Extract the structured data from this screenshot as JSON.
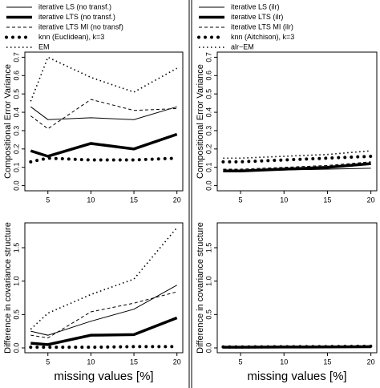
{
  "chart_data": [
    {
      "type": "line",
      "ylabel": "Compositional Error Variance",
      "legend": "top",
      "x": [
        3,
        5,
        10,
        15,
        20
      ],
      "xlim": [
        2.32,
        20.68
      ],
      "xticks": [
        5,
        10,
        15,
        20
      ],
      "ylim": [
        -0.028,
        0.728
      ],
      "yticks": [
        {
          "value": 0,
          "label": "0.0"
        },
        0.1,
        0.2,
        0.3,
        0.4,
        0.5,
        0.6,
        0.7
      ],
      "series": [
        {
          "name": "iterative LS (no transf.)",
          "color": "#000000",
          "linestyle": "solid",
          "values": [
            0.43,
            0.36,
            0.37,
            0.36,
            0.43
          ]
        },
        {
          "name": "iterative LTS (no transf.)",
          "color": "#000000",
          "linestyle": "thick",
          "values": [
            0.19,
            0.16,
            0.23,
            0.2,
            0.28
          ]
        },
        {
          "name": "iterative LTS MI (no transf)",
          "color": "#000000",
          "linestyle": "dashed",
          "values": [
            0.38,
            0.31,
            0.47,
            0.41,
            0.42
          ]
        },
        {
          "name": "knn (Euclidean), k=3",
          "color": "#000000",
          "linestyle": "dots",
          "values": [
            0.13,
            0.15,
            0.14,
            0.14,
            0.15
          ]
        },
        {
          "name": "EM",
          "color": "#000000",
          "linestyle": "dotted",
          "values": [
            0.46,
            0.7,
            0.59,
            0.51,
            0.64
          ]
        }
      ]
    },
    {
      "type": "line",
      "ylabel": "Compositional Error Variance",
      "legend": "top",
      "x": [
        3,
        5,
        10,
        15,
        20
      ],
      "xlim": [
        2.32,
        20.68
      ],
      "xticks": [
        5,
        10,
        15,
        20
      ],
      "ylim": [
        -0.028,
        0.728
      ],
      "yticks": [
        {
          "value": 0,
          "label": "0.0"
        },
        0.1,
        0.2,
        0.3,
        0.4,
        0.5,
        0.6,
        0.7
      ],
      "series": [
        {
          "name": "iterative LS (ilr)",
          "color": "#000000",
          "linestyle": "solid",
          "values": [
            0.08,
            0.08,
            0.085,
            0.09,
            0.095
          ]
        },
        {
          "name": "iterative LTS (ilr)",
          "color": "#000000",
          "linestyle": "thick",
          "values": [
            0.08,
            0.08,
            0.09,
            0.1,
            0.12
          ]
        },
        {
          "name": "iterative LTS MI (ilr)",
          "color": "#000000",
          "linestyle": "dashed",
          "values": [
            0.09,
            0.09,
            0.1,
            0.11,
            0.13
          ]
        },
        {
          "name": "knn (Aitchison), k=3",
          "color": "#000000",
          "linestyle": "dots",
          "values": [
            0.13,
            0.13,
            0.14,
            0.15,
            0.16
          ]
        },
        {
          "name": "alr−EM",
          "color": "#000000",
          "linestyle": "dotted",
          "values": [
            0.15,
            0.15,
            0.16,
            0.17,
            0.19
          ]
        }
      ]
    },
    {
      "type": "line",
      "ylabel": "Difference in covariance structure",
      "xlabel": "missing values [%]",
      "x": [
        3,
        5,
        10,
        15,
        20
      ],
      "xlim": [
        2.32,
        20.68
      ],
      "xticks": [
        5,
        10,
        15,
        20
      ],
      "ylim": [
        -0.072,
        1.872
      ],
      "yticks": [
        {
          "value": 0,
          "label": "0.0"
        },
        0.5,
        {
          "value": 1,
          "label": "1.0"
        },
        1.5
      ],
      "series": [
        {
          "color": "#000000",
          "linestyle": "solid",
          "values": [
            0.25,
            0.19,
            0.4,
            0.58,
            0.94
          ]
        },
        {
          "color": "#000000",
          "linestyle": "thick",
          "values": [
            0.07,
            0.05,
            0.19,
            0.2,
            0.45
          ]
        },
        {
          "color": "#000000",
          "linestyle": "dashed",
          "values": [
            0.19,
            0.15,
            0.54,
            0.67,
            0.84
          ]
        },
        {
          "color": "#000000",
          "linestyle": "dots",
          "values": [
            0.01,
            0.01,
            0.01,
            0.02,
            0.02
          ]
        },
        {
          "color": "#000000",
          "linestyle": "dotted",
          "values": [
            0.28,
            0.52,
            0.8,
            1.03,
            1.8
          ]
        }
      ]
    },
    {
      "type": "line",
      "ylabel": "Difference in covariance structure",
      "xlabel": "missing values [%]",
      "x": [
        3,
        5,
        10,
        15,
        20
      ],
      "xlim": [
        2.32,
        20.68
      ],
      "xticks": [
        5,
        10,
        15,
        20
      ],
      "ylim": [
        -0.072,
        1.872
      ],
      "yticks": [
        {
          "value": 0,
          "label": "0.0"
        },
        0.5,
        {
          "value": 1,
          "label": "1.0"
        },
        1.5
      ],
      "series": [
        {
          "color": "#000000",
          "linestyle": "solid",
          "values": [
            0.01,
            0.01,
            0.012,
            0.014,
            0.016
          ]
        },
        {
          "color": "#000000",
          "linestyle": "thick",
          "values": [
            0.01,
            0.01,
            0.013,
            0.015,
            0.018
          ]
        },
        {
          "color": "#000000",
          "linestyle": "dashed",
          "values": [
            0.012,
            0.012,
            0.015,
            0.018,
            0.022
          ]
        },
        {
          "color": "#000000",
          "linestyle": "dots",
          "values": [
            0.015,
            0.015,
            0.018,
            0.02,
            0.025
          ]
        },
        {
          "color": "#000000",
          "linestyle": "dotted",
          "values": [
            0.018,
            0.018,
            0.02,
            0.024,
            0.03
          ]
        }
      ]
    }
  ]
}
